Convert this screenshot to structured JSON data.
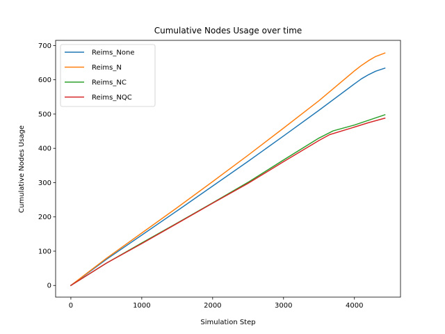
{
  "chart_data": {
    "type": "line",
    "title": "Cumulative Nodes Usage over time",
    "xlabel": "Simulation Step",
    "ylabel": "Cumulative Nodes Usage",
    "xlim": [
      -215,
      4650
    ],
    "ylim": [
      -34,
      715
    ],
    "xticks": [
      0,
      1000,
      2000,
      3000,
      4000
    ],
    "yticks": [
      0,
      100,
      200,
      300,
      400,
      500,
      600,
      700
    ],
    "grid": false,
    "legend_position": "top-left",
    "series": [
      {
        "name": "Reims_None",
        "color": "#1f77b4",
        "points": [
          [
            0,
            0
          ],
          [
            500,
            76
          ],
          [
            1000,
            147
          ],
          [
            1500,
            218
          ],
          [
            2000,
            290
          ],
          [
            2500,
            362
          ],
          [
            3000,
            436
          ],
          [
            3500,
            511
          ],
          [
            4000,
            588
          ],
          [
            4100,
            603
          ],
          [
            4200,
            615
          ],
          [
            4300,
            625
          ],
          [
            4430,
            634
          ]
        ]
      },
      {
        "name": "Reims_N",
        "color": "#ff7f0e",
        "points": [
          [
            0,
            0
          ],
          [
            500,
            79
          ],
          [
            1000,
            153
          ],
          [
            1500,
            227
          ],
          [
            2000,
            303
          ],
          [
            2500,
            380
          ],
          [
            3000,
            459
          ],
          [
            3500,
            539
          ],
          [
            4000,
            626
          ],
          [
            4100,
            642
          ],
          [
            4200,
            656
          ],
          [
            4300,
            668
          ],
          [
            4430,
            678
          ]
        ]
      },
      {
        "name": "Reims_NC",
        "color": "#2ca02c",
        "points": [
          [
            0,
            0
          ],
          [
            500,
            65
          ],
          [
            1000,
            124
          ],
          [
            1500,
            182
          ],
          [
            2000,
            241
          ],
          [
            2500,
            301
          ],
          [
            3000,
            366
          ],
          [
            3500,
            430
          ],
          [
            3700,
            451
          ],
          [
            4000,
            468
          ],
          [
            4200,
            482
          ],
          [
            4430,
            498
          ]
        ]
      },
      {
        "name": "Reims_NQC",
        "color": "#d62728",
        "points": [
          [
            0,
            0
          ],
          [
            500,
            65
          ],
          [
            1000,
            122
          ],
          [
            1500,
            181
          ],
          [
            2000,
            240
          ],
          [
            2500,
            298
          ],
          [
            3000,
            361
          ],
          [
            3500,
            423
          ],
          [
            3650,
            440
          ],
          [
            4000,
            462
          ],
          [
            4200,
            475
          ],
          [
            4430,
            488
          ]
        ]
      }
    ]
  }
}
